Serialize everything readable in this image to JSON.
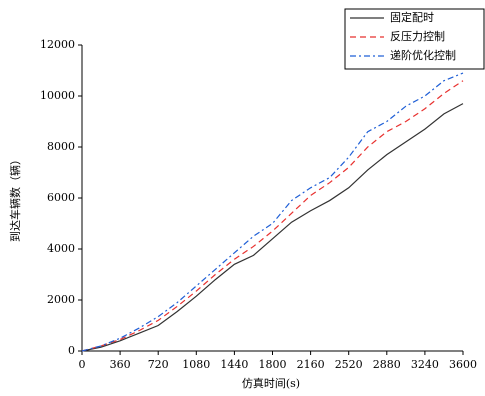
{
  "chart_data": {
    "type": "line",
    "x_label": "仿真时间(s)",
    "y_label": "到达车辆数（辆）",
    "x": [
      0,
      180,
      360,
      540,
      720,
      900,
      1080,
      1260,
      1440,
      1620,
      1800,
      1980,
      2160,
      2340,
      2520,
      2700,
      2880,
      3060,
      3240,
      3420,
      3600
    ],
    "series": [
      {
        "name": "固定配时",
        "color": "#333333",
        "dash": "",
        "values": [
          0,
          150,
          400,
          700,
          1000,
          1550,
          2150,
          2800,
          3400,
          3750,
          4400,
          5050,
          5500,
          5900,
          6400,
          7100,
          7700,
          8200,
          8700,
          9300,
          9700
        ]
      },
      {
        "name": "反压力控制",
        "color": "#e8312f",
        "dash": "6 4",
        "values": [
          0,
          200,
          450,
          800,
          1200,
          1750,
          2350,
          3000,
          3600,
          4100,
          4700,
          5400,
          6100,
          6600,
          7200,
          8000,
          8600,
          9000,
          9500,
          10100,
          10600
        ]
      },
      {
        "name": "递阶优化控制",
        "color": "#1f5fd6",
        "dash": "6 3 2 3",
        "values": [
          0,
          200,
          500,
          900,
          1350,
          1900,
          2550,
          3200,
          3850,
          4500,
          5000,
          5900,
          6400,
          6800,
          7600,
          8600,
          9000,
          9600,
          10000,
          10600,
          10900
        ]
      }
    ],
    "xlim": [
      0,
      3600
    ],
    "xticks": [
      0,
      360,
      720,
      1080,
      1440,
      1800,
      2160,
      2520,
      2880,
      3240,
      3600
    ],
    "ylim": [
      0,
      12000
    ],
    "yticks": [
      0,
      2000,
      4000,
      6000,
      8000,
      10000,
      12000
    ],
    "legend": "top-right"
  }
}
